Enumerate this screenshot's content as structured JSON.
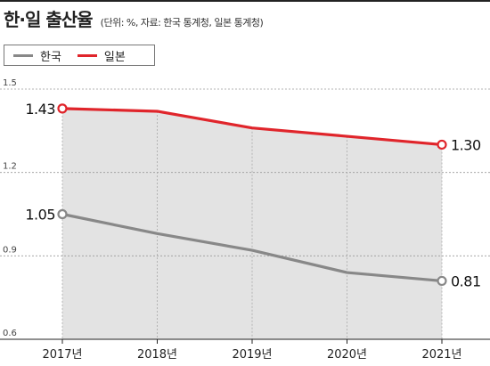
{
  "chart_data": {
    "type": "line",
    "title": "한·일 출산율",
    "subtitle": "(단위: %, 자료: 한국 통계청, 일본 통계청)",
    "categories": [
      "2017년",
      "2018년",
      "2019년",
      "2020년",
      "2021년"
    ],
    "series": [
      {
        "name": "한국",
        "color": "#888888",
        "values": [
          1.05,
          0.98,
          0.92,
          0.84,
          0.81
        ]
      },
      {
        "name": "일본",
        "color": "#e0252b",
        "values": [
          1.43,
          1.42,
          1.36,
          1.33,
          1.3
        ]
      }
    ],
    "data_labels": {
      "한국_first": "1.05",
      "한국_last": "0.81",
      "일본_first": "1.43",
      "일본_last": "1.30"
    },
    "yticks": [
      1.5,
      1.2,
      0.9,
      0.6
    ],
    "ytick_labels": [
      "1.5",
      "1.2",
      "0.9",
      "0.6"
    ],
    "ylim": [
      0.6,
      1.5
    ],
    "grid": "dashed",
    "fill_under_top_series": "#e3e3e3"
  }
}
